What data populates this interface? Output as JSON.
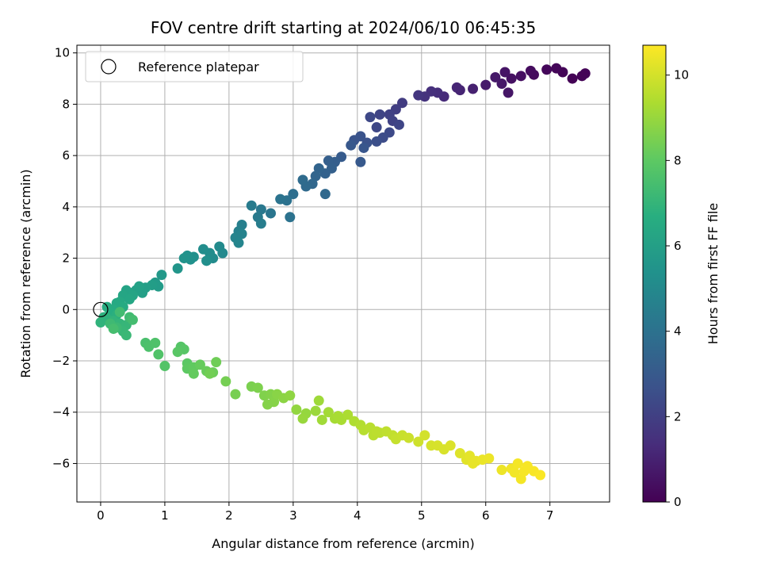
{
  "chart_data": {
    "type": "scatter",
    "title": "FOV centre drift starting at 2024/06/10 06:45:35",
    "xlabel": "Angular distance from reference (arcmin)",
    "ylabel": "Rotation from reference (arcmin)",
    "xlim": [
      -0.37,
      7.93
    ],
    "ylim": [
      -7.5,
      10.3
    ],
    "x_ticks": [
      0,
      1,
      2,
      3,
      4,
      5,
      6,
      7
    ],
    "y_ticks": [
      -6,
      -4,
      -2,
      0,
      2,
      4,
      6,
      8,
      10
    ],
    "grid": true,
    "legend": {
      "placement": "top-left",
      "entries": [
        "Reference platepar"
      ]
    },
    "reference_point": {
      "label": "Reference platepar",
      "x": 0,
      "y": 0
    },
    "colorbar": {
      "label": "Hours from first FF file",
      "colormap": "viridis",
      "range": [
        0,
        10.7
      ],
      "ticks": [
        0,
        2,
        4,
        6,
        8,
        10
      ]
    },
    "series": [
      {
        "points": [
          [
            7.35,
            9.0,
            0.05
          ],
          [
            7.2,
            9.25,
            0.1
          ],
          [
            7.1,
            9.4,
            0.15
          ],
          [
            6.95,
            9.35,
            0.2
          ],
          [
            7.55,
            9.2,
            0.1
          ],
          [
            7.5,
            9.1,
            0.08
          ],
          [
            6.75,
            9.15,
            0.3
          ],
          [
            6.7,
            9.3,
            0.35
          ],
          [
            6.55,
            9.1,
            0.45
          ],
          [
            6.4,
            9.0,
            0.5
          ],
          [
            6.3,
            9.25,
            0.6
          ],
          [
            6.35,
            8.45,
            0.65
          ],
          [
            6.25,
            8.8,
            0.7
          ],
          [
            6.15,
            9.05,
            0.75
          ],
          [
            6.0,
            8.75,
            0.8
          ],
          [
            5.8,
            8.6,
            1.0
          ],
          [
            5.6,
            8.55,
            1.1
          ],
          [
            5.55,
            8.65,
            1.15
          ],
          [
            5.35,
            8.3,
            1.3
          ],
          [
            5.25,
            8.45,
            1.4
          ],
          [
            5.15,
            8.5,
            1.5
          ],
          [
            5.05,
            8.3,
            1.6
          ],
          [
            4.95,
            8.35,
            1.7
          ],
          [
            4.7,
            8.05,
            1.9
          ],
          [
            4.6,
            7.8,
            2.0
          ],
          [
            4.5,
            7.6,
            2.1
          ],
          [
            4.55,
            7.35,
            2.15
          ],
          [
            4.35,
            7.6,
            2.2
          ],
          [
            4.3,
            7.1,
            2.3
          ],
          [
            4.2,
            7.5,
            2.35
          ],
          [
            4.65,
            7.2,
            2.25
          ],
          [
            4.5,
            6.9,
            2.4
          ],
          [
            4.4,
            6.7,
            2.5
          ],
          [
            4.3,
            6.55,
            2.6
          ],
          [
            4.15,
            6.5,
            2.7
          ],
          [
            4.05,
            6.75,
            2.75
          ],
          [
            3.95,
            6.6,
            2.8
          ],
          [
            4.1,
            6.3,
            2.9
          ],
          [
            3.9,
            6.4,
            2.95
          ],
          [
            4.05,
            5.75,
            3.0
          ],
          [
            3.75,
            5.95,
            3.1
          ],
          [
            3.65,
            5.75,
            3.2
          ],
          [
            3.55,
            5.8,
            3.25
          ],
          [
            3.6,
            5.5,
            3.3
          ],
          [
            3.5,
            5.3,
            3.4
          ],
          [
            3.4,
            5.5,
            3.45
          ],
          [
            3.35,
            5.2,
            3.5
          ],
          [
            3.3,
            4.9,
            3.6
          ],
          [
            3.5,
            4.5,
            3.65
          ],
          [
            3.2,
            4.8,
            3.7
          ],
          [
            3.15,
            5.05,
            3.75
          ],
          [
            3.0,
            4.5,
            3.9
          ],
          [
            2.9,
            4.25,
            4.0
          ],
          [
            2.95,
            3.6,
            4.05
          ],
          [
            2.8,
            4.3,
            4.1
          ],
          [
            2.65,
            3.75,
            4.2
          ],
          [
            2.5,
            3.9,
            4.3
          ],
          [
            2.45,
            3.6,
            4.4
          ],
          [
            2.35,
            4.05,
            4.45
          ],
          [
            2.5,
            3.35,
            4.5
          ],
          [
            2.2,
            3.3,
            4.6
          ],
          [
            2.15,
            3.05,
            4.7
          ],
          [
            2.1,
            2.8,
            4.8
          ],
          [
            2.2,
            2.95,
            4.75
          ],
          [
            2.15,
            2.6,
            4.85
          ],
          [
            1.9,
            2.2,
            5.0
          ],
          [
            1.85,
            2.45,
            5.05
          ],
          [
            1.75,
            2.0,
            5.1
          ],
          [
            1.7,
            2.2,
            5.15
          ],
          [
            1.6,
            2.35,
            5.2
          ],
          [
            1.65,
            1.9,
            5.25
          ],
          [
            1.45,
            2.05,
            5.3
          ],
          [
            1.4,
            1.95,
            5.35
          ],
          [
            1.35,
            2.1,
            5.4
          ],
          [
            1.3,
            2.0,
            5.45
          ],
          [
            1.2,
            1.6,
            5.55
          ],
          [
            0.95,
            1.35,
            5.7
          ],
          [
            0.85,
            1.05,
            5.8
          ],
          [
            0.9,
            0.9,
            5.85
          ],
          [
            0.8,
            0.95,
            5.9
          ],
          [
            0.7,
            0.85,
            5.95
          ],
          [
            0.65,
            0.65,
            6.0
          ],
          [
            0.55,
            0.75,
            6.05
          ],
          [
            0.6,
            0.9,
            6.1
          ],
          [
            0.45,
            0.65,
            6.15
          ],
          [
            0.4,
            0.75,
            6.2
          ],
          [
            0.5,
            0.55,
            6.25
          ],
          [
            0.35,
            0.55,
            6.3
          ],
          [
            0.45,
            0.4,
            6.35
          ],
          [
            0.3,
            0.3,
            6.45
          ],
          [
            0.25,
            0.25,
            6.5
          ],
          [
            0.35,
            0.1,
            6.55
          ],
          [
            0.2,
            0.0,
            6.6
          ],
          [
            0.1,
            0.1,
            6.65
          ],
          [
            0.15,
            -0.1,
            6.7
          ],
          [
            0.25,
            -0.2,
            6.8
          ],
          [
            0.05,
            -0.3,
            6.85
          ],
          [
            0.1,
            -0.35,
            6.9
          ],
          [
            0.0,
            -0.5,
            6.95
          ],
          [
            0.2,
            -0.45,
            7.0
          ],
          [
            0.3,
            -0.55,
            7.05
          ],
          [
            0.4,
            -0.6,
            7.1
          ],
          [
            0.35,
            -0.85,
            7.15
          ],
          [
            0.4,
            -1.0,
            7.2
          ],
          [
            0.25,
            -0.7,
            7.25
          ],
          [
            0.15,
            -0.55,
            7.3
          ],
          [
            0.45,
            -0.3,
            7.35
          ],
          [
            0.3,
            -0.1,
            7.4
          ],
          [
            0.5,
            -0.4,
            7.45
          ],
          [
            0.2,
            -0.75,
            7.5
          ],
          [
            0.7,
            -1.3,
            7.6
          ],
          [
            0.75,
            -1.45,
            7.65
          ],
          [
            0.85,
            -1.3,
            7.7
          ],
          [
            0.9,
            -1.75,
            7.75
          ],
          [
            1.0,
            -2.2,
            7.8
          ],
          [
            1.25,
            -1.45,
            7.85
          ],
          [
            1.3,
            -1.55,
            7.9
          ],
          [
            1.2,
            -1.65,
            7.95
          ],
          [
            1.35,
            -2.1,
            8.0
          ],
          [
            1.35,
            -2.3,
            8.05
          ],
          [
            1.45,
            -2.25,
            8.1
          ],
          [
            1.45,
            -2.5,
            8.15
          ],
          [
            1.55,
            -2.15,
            8.2
          ],
          [
            1.65,
            -2.4,
            8.25
          ],
          [
            1.75,
            -2.45,
            8.3
          ],
          [
            1.8,
            -2.05,
            8.35
          ],
          [
            1.7,
            -2.5,
            8.4
          ],
          [
            1.95,
            -2.8,
            8.45
          ],
          [
            2.1,
            -3.3,
            8.5
          ],
          [
            2.35,
            -3.0,
            8.55
          ],
          [
            2.45,
            -3.05,
            8.6
          ],
          [
            2.55,
            -3.35,
            8.65
          ],
          [
            2.65,
            -3.3,
            8.7
          ],
          [
            2.7,
            -3.6,
            8.75
          ],
          [
            2.75,
            -3.3,
            8.8
          ],
          [
            2.85,
            -3.45,
            8.85
          ],
          [
            2.95,
            -3.35,
            8.9
          ],
          [
            3.05,
            -3.9,
            8.95
          ],
          [
            3.2,
            -4.05,
            9.0
          ],
          [
            3.15,
            -4.25,
            9.05
          ],
          [
            3.35,
            -3.95,
            9.1
          ],
          [
            3.4,
            -3.55,
            9.15
          ],
          [
            3.45,
            -4.3,
            9.2
          ],
          [
            3.55,
            -4.0,
            9.25
          ],
          [
            3.65,
            -4.25,
            9.3
          ],
          [
            3.75,
            -4.3,
            9.35
          ],
          [
            3.85,
            -4.1,
            9.4
          ],
          [
            3.95,
            -4.35,
            9.45
          ],
          [
            4.05,
            -4.5,
            9.5
          ],
          [
            4.1,
            -4.7,
            9.55
          ],
          [
            4.2,
            -4.6,
            9.6
          ],
          [
            4.25,
            -4.9,
            9.62
          ],
          [
            4.35,
            -4.8,
            9.65
          ],
          [
            4.45,
            -4.75,
            9.7
          ],
          [
            4.55,
            -4.9,
            9.75
          ],
          [
            4.6,
            -5.05,
            9.8
          ],
          [
            4.7,
            -4.9,
            9.85
          ],
          [
            4.8,
            -5.0,
            9.9
          ],
          [
            4.95,
            -5.15,
            9.95
          ],
          [
            5.05,
            -4.9,
            10.0
          ],
          [
            5.15,
            -5.3,
            10.05
          ],
          [
            5.25,
            -5.3,
            10.08
          ],
          [
            5.35,
            -5.45,
            10.1
          ],
          [
            5.45,
            -5.3,
            10.15
          ],
          [
            5.6,
            -5.6,
            10.2
          ],
          [
            5.7,
            -5.85,
            10.25
          ],
          [
            5.75,
            -5.7,
            10.3
          ],
          [
            5.85,
            -5.9,
            10.35
          ],
          [
            5.95,
            -5.85,
            10.4
          ],
          [
            6.05,
            -5.8,
            10.42
          ],
          [
            6.25,
            -6.25,
            10.45
          ],
          [
            6.4,
            -6.2,
            10.5
          ],
          [
            6.45,
            -6.35,
            10.52
          ],
          [
            6.55,
            -6.6,
            10.55
          ],
          [
            6.6,
            -6.3,
            10.58
          ],
          [
            6.65,
            -6.1,
            10.6
          ],
          [
            6.75,
            -6.3,
            10.62
          ],
          [
            6.85,
            -6.45,
            10.65
          ],
          [
            6.5,
            -6.0,
            10.55
          ],
          [
            5.8,
            -6.0,
            10.35
          ],
          [
            4.3,
            -4.75,
            9.65
          ],
          [
            3.7,
            -4.15,
            9.33
          ],
          [
            2.6,
            -3.7,
            8.72
          ]
        ]
      }
    ]
  }
}
